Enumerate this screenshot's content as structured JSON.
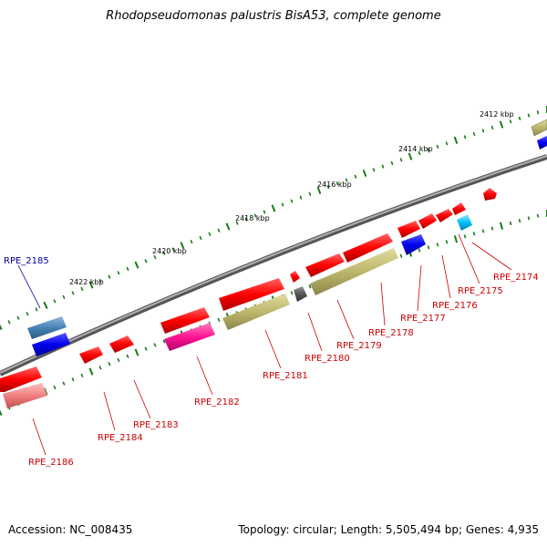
{
  "title": "Rhodopseudomonas palustris BisA53, complete genome",
  "footer": {
    "accession": "Accession: NC_008435",
    "summary": "Topology: circular; Length: 5,505,494 bp; Genes: 4,935"
  },
  "ticks": [
    {
      "label": "2412 kbp"
    },
    {
      "label": "2414 kbp"
    },
    {
      "label": "2416 kbp"
    },
    {
      "label": "2418 kbp"
    },
    {
      "label": "2420 kbp"
    },
    {
      "label": "2422 kbp"
    }
  ],
  "genes": [
    {
      "name": "RPE_2174",
      "color": "#cc0000"
    },
    {
      "name": "RPE_2175",
      "color": "#cc0000"
    },
    {
      "name": "RPE_2176",
      "color": "#cc0000"
    },
    {
      "name": "RPE_2177",
      "color": "#cc0000"
    },
    {
      "name": "RPE_2178",
      "color": "#cc0000"
    },
    {
      "name": "RPE_2179",
      "color": "#cc0000"
    },
    {
      "name": "RPE_2180",
      "color": "#cc0000"
    },
    {
      "name": "RPE_2181",
      "color": "#cc0000"
    },
    {
      "name": "RPE_2182",
      "color": "#cc0000"
    },
    {
      "name": "RPE_2183",
      "color": "#cc0000"
    },
    {
      "name": "RPE_2184",
      "color": "#cc0000"
    },
    {
      "name": "RPE_2185",
      "color": "#000099"
    },
    {
      "name": "RPE_2186",
      "color": "#cc0000"
    }
  ],
  "colors": {
    "backbone": "#808080",
    "tick": "#1a7a1a",
    "red_feature": "#ff0000",
    "olive_feature": "#bdb76b",
    "blue_feature": "#0000ee",
    "steel_feature": "#4682b4",
    "cyan_feature": "#00bfff",
    "magenta_feature": "#ff1493",
    "pink_feature": "#f08080",
    "gray_feature": "#555555"
  }
}
